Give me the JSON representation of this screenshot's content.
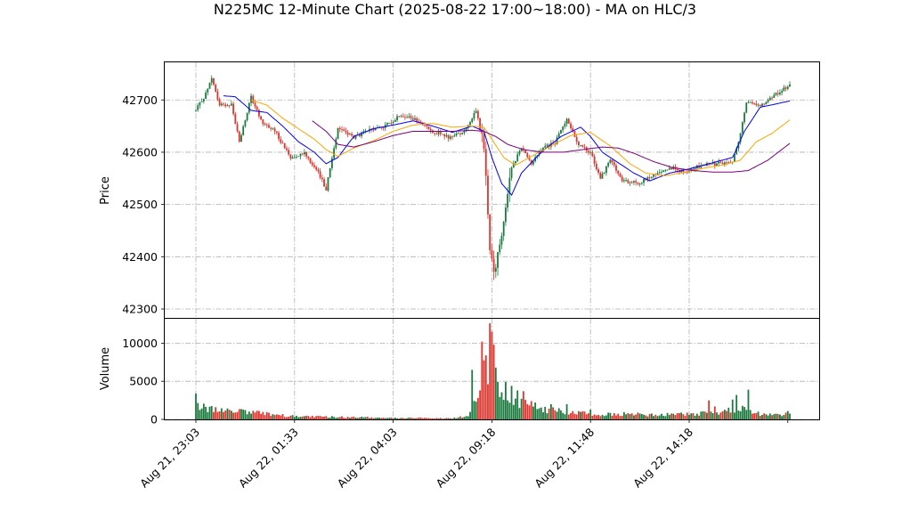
{
  "chart_data": {
    "type": "candlestick",
    "title": "N225MC 12-Minute Chart (2025-08-22 17:00~18:00) - MA on HLC/3",
    "price_panel": {
      "ylabel": "Price",
      "ylim": [
        42283,
        42772
      ],
      "yticks": [
        42300,
        42400,
        42500,
        42600,
        42700
      ],
      "grid": true
    },
    "volume_panel": {
      "ylabel": "Volume",
      "ylim": [
        0,
        13200
      ],
      "yticks": [
        0,
        5000,
        10000
      ],
      "yticklabels": [
        "0",
        "5000",
        "10000"
      ],
      "grid": true
    },
    "x_axis": {
      "tick_labels": [
        "Aug 21, 23:03",
        "Aug 22, 01:33",
        "Aug 22, 04:03",
        "Aug 22, 09:18",
        "Aug 22, 11:48",
        "Aug 22, 14:18"
      ],
      "tick_bar_index": [
        0,
        50,
        100,
        150,
        200,
        250
      ]
    },
    "colors": {
      "up": "#1b7a3e",
      "down": "#e0342c",
      "ma_short": "#0000ff",
      "ma_mid": "#ffa500",
      "ma_long": "#800080"
    },
    "price_keypoints": [
      [
        0,
        42680
      ],
      [
        5,
        42712
      ],
      [
        8,
        42740
      ],
      [
        12,
        42690
      ],
      [
        18,
        42692
      ],
      [
        22,
        42620
      ],
      [
        28,
        42705
      ],
      [
        33,
        42660
      ],
      [
        40,
        42640
      ],
      [
        48,
        42590
      ],
      [
        55,
        42600
      ],
      [
        62,
        42560
      ],
      [
        66,
        42530
      ],
      [
        72,
        42648
      ],
      [
        80,
        42628
      ],
      [
        88,
        42642
      ],
      [
        96,
        42650
      ],
      [
        104,
        42672
      ],
      [
        112,
        42660
      ],
      [
        120,
        42640
      ],
      [
        128,
        42628
      ],
      [
        136,
        42640
      ],
      [
        142,
        42680
      ],
      [
        146,
        42612
      ],
      [
        149,
        42420
      ],
      [
        151,
        42362
      ],
      [
        155,
        42450
      ],
      [
        160,
        42570
      ],
      [
        165,
        42610
      ],
      [
        170,
        42580
      ],
      [
        176,
        42608
      ],
      [
        182,
        42618
      ],
      [
        188,
        42665
      ],
      [
        194,
        42615
      ],
      [
        200,
        42600
      ],
      [
        205,
        42550
      ],
      [
        210,
        42585
      ],
      [
        216,
        42545
      ],
      [
        224,
        42540
      ],
      [
        232,
        42555
      ],
      [
        240,
        42572
      ],
      [
        248,
        42560
      ],
      [
        256,
        42575
      ],
      [
        264,
        42578
      ],
      [
        272,
        42582
      ],
      [
        275,
        42620
      ],
      [
        279,
        42695
      ],
      [
        286,
        42690
      ],
      [
        293,
        42708
      ],
      [
        301,
        42730
      ]
    ],
    "volume_keypoints": [
      [
        0,
        1700
      ],
      [
        10,
        1300
      ],
      [
        20,
        1100
      ],
      [
        30,
        900
      ],
      [
        40,
        600
      ],
      [
        50,
        420
      ],
      [
        60,
        360
      ],
      [
        70,
        320
      ],
      [
        80,
        280
      ],
      [
        90,
        230
      ],
      [
        100,
        220
      ],
      [
        110,
        200
      ],
      [
        120,
        170
      ],
      [
        130,
        150
      ],
      [
        138,
        450
      ],
      [
        142,
        3200
      ],
      [
        146,
        5800
      ],
      [
        150,
        8500
      ],
      [
        154,
        4200
      ],
      [
        160,
        2600
      ],
      [
        170,
        1900
      ],
      [
        180,
        1200
      ],
      [
        190,
        900
      ],
      [
        200,
        720
      ],
      [
        210,
        700
      ],
      [
        220,
        680
      ],
      [
        230,
        620
      ],
      [
        240,
        650
      ],
      [
        250,
        680
      ],
      [
        260,
        900
      ],
      [
        270,
        1100
      ],
      [
        278,
        1300
      ],
      [
        286,
        700
      ],
      [
        294,
        560
      ],
      [
        301,
        760
      ]
    ],
    "volume_spikes": [
      [
        0,
        3400
      ],
      [
        140,
        6500
      ],
      [
        143,
        2800
      ],
      [
        145,
        10200
      ],
      [
        147,
        8400
      ],
      [
        149,
        12600
      ],
      [
        150,
        11500
      ],
      [
        151,
        9800
      ],
      [
        152,
        6800
      ],
      [
        157,
        4900
      ],
      [
        160,
        4400
      ],
      [
        163,
        3800
      ],
      [
        166,
        3700
      ],
      [
        170,
        2400
      ],
      [
        180,
        2000
      ],
      [
        188,
        2000
      ],
      [
        200,
        1300
      ],
      [
        260,
        2500
      ],
      [
        263,
        1700
      ],
      [
        272,
        2600
      ],
      [
        274,
        3200
      ],
      [
        280,
        3900
      ],
      [
        300,
        1100
      ]
    ],
    "moving_averages": [
      {
        "color": "#0000ff",
        "keypoints": [
          [
            14,
            42708
          ],
          [
            20,
            42706
          ],
          [
            28,
            42680
          ],
          [
            36,
            42676
          ],
          [
            44,
            42650
          ],
          [
            52,
            42620
          ],
          [
            60,
            42600
          ],
          [
            66,
            42578
          ],
          [
            72,
            42590
          ],
          [
            80,
            42630
          ],
          [
            90,
            42645
          ],
          [
            100,
            42652
          ],
          [
            110,
            42660
          ],
          [
            120,
            42650
          ],
          [
            130,
            42638
          ],
          [
            140,
            42650
          ],
          [
            146,
            42640
          ],
          [
            150,
            42590
          ],
          [
            155,
            42540
          ],
          [
            160,
            42518
          ],
          [
            165,
            42560
          ],
          [
            175,
            42600
          ],
          [
            185,
            42630
          ],
          [
            195,
            42648
          ],
          [
            200,
            42630
          ],
          [
            206,
            42600
          ],
          [
            214,
            42580
          ],
          [
            222,
            42560
          ],
          [
            230,
            42545
          ],
          [
            240,
            42560
          ],
          [
            250,
            42568
          ],
          [
            260,
            42578
          ],
          [
            272,
            42590
          ],
          [
            278,
            42640
          ],
          [
            286,
            42686
          ],
          [
            301,
            42698
          ]
        ]
      },
      {
        "color": "#ffa500",
        "keypoints": [
          [
            28,
            42700
          ],
          [
            36,
            42690
          ],
          [
            44,
            42665
          ],
          [
            52,
            42645
          ],
          [
            60,
            42625
          ],
          [
            66,
            42605
          ],
          [
            72,
            42592
          ],
          [
            80,
            42608
          ],
          [
            90,
            42622
          ],
          [
            100,
            42640
          ],
          [
            110,
            42652
          ],
          [
            120,
            42655
          ],
          [
            130,
            42648
          ],
          [
            140,
            42650
          ],
          [
            146,
            42648
          ],
          [
            150,
            42625
          ],
          [
            156,
            42590
          ],
          [
            162,
            42575
          ],
          [
            170,
            42592
          ],
          [
            180,
            42612
          ],
          [
            190,
            42632
          ],
          [
            200,
            42638
          ],
          [
            210,
            42612
          ],
          [
            220,
            42578
          ],
          [
            228,
            42560
          ],
          [
            238,
            42555
          ],
          [
            248,
            42562
          ],
          [
            258,
            42570
          ],
          [
            268,
            42576
          ],
          [
            276,
            42585
          ],
          [
            284,
            42620
          ],
          [
            292,
            42636
          ],
          [
            301,
            42662
          ]
        ]
      },
      {
        "color": "#800080",
        "keypoints": [
          [
            59,
            42660
          ],
          [
            66,
            42640
          ],
          [
            72,
            42615
          ],
          [
            80,
            42610
          ],
          [
            90,
            42620
          ],
          [
            100,
            42632
          ],
          [
            110,
            42640
          ],
          [
            120,
            42640
          ],
          [
            130,
            42640
          ],
          [
            140,
            42642
          ],
          [
            146,
            42640
          ],
          [
            152,
            42630
          ],
          [
            158,
            42615
          ],
          [
            166,
            42605
          ],
          [
            176,
            42600
          ],
          [
            186,
            42600
          ],
          [
            196,
            42605
          ],
          [
            206,
            42610
          ],
          [
            214,
            42608
          ],
          [
            222,
            42598
          ],
          [
            232,
            42582
          ],
          [
            242,
            42570
          ],
          [
            252,
            42565
          ],
          [
            262,
            42562
          ],
          [
            272,
            42562
          ],
          [
            280,
            42565
          ],
          [
            290,
            42585
          ],
          [
            301,
            42617
          ]
        ]
      }
    ]
  }
}
